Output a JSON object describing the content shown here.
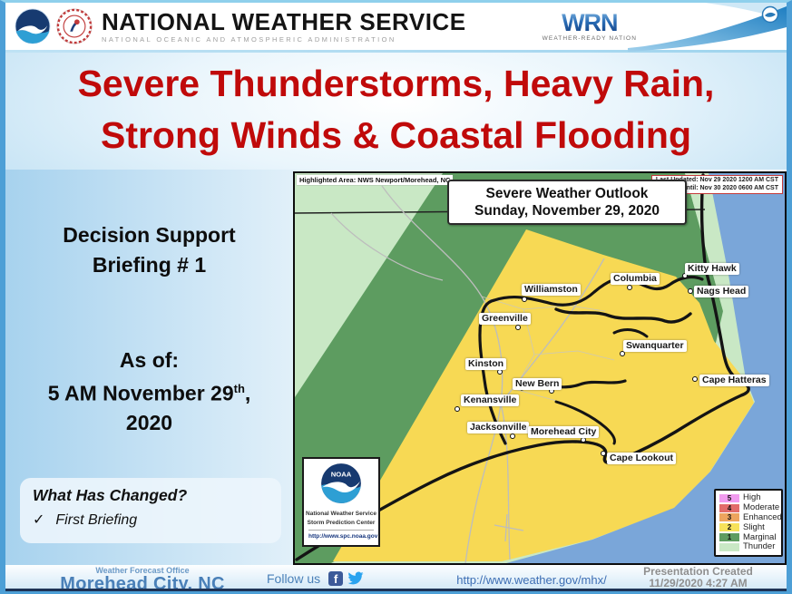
{
  "header": {
    "agency": "NATIONAL WEATHER SERVICE",
    "subagency": "NATIONAL OCEANIC AND ATMOSPHERIC ADMINISTRATION",
    "wrn_acronym": "WRN",
    "wrn_label": "WEATHER-READY NATION"
  },
  "title": {
    "line1": "Severe Thunderstorms, Heavy Rain,",
    "line2": "Strong Winds & Coastal Flooding"
  },
  "left_panel": {
    "briefing_line1": "Decision Support",
    "briefing_line2": "Briefing # 1",
    "asof_label": "As of:",
    "asof_date_main": "5 AM November 29",
    "asof_date_sup": "th",
    "asof_date_tail": ",",
    "asof_year": "2020",
    "changed_heading": "What Has Changed?",
    "changed_check": "✓",
    "changed_item": "First Briefing"
  },
  "map": {
    "highlighted_area": "Highlighted Area: NWS Newport/Morehead, NC",
    "outlook_title_line1": "Severe Weather Outlook",
    "outlook_title_line2": "Sunday, November 29, 2020",
    "last_updated": "Last Updated: Nov 29 2020 1200 AM CST",
    "valid_until": "Valid Until: Nov 30 2020 0600 AM CST",
    "colors": {
      "thunder": "#c9e8c5",
      "thunder_strip": "#c9e8c5",
      "marginal": "#5d9c60",
      "slight": "#f7d954",
      "ocean": "#7aa6d9"
    },
    "cities": [
      {
        "name": "Kitty Hawk",
        "label": [
          430,
          99
        ],
        "dot": [
          430,
          113
        ]
      },
      {
        "name": "Nags Head",
        "label": [
          440,
          124
        ],
        "dot": [
          436,
          130
        ]
      },
      {
        "name": "Columbia",
        "label": [
          348,
          110
        ],
        "dot": [
          369,
          126
        ]
      },
      {
        "name": "Williamston",
        "label": [
          250,
          122
        ],
        "dot": [
          253,
          139
        ]
      },
      {
        "name": "Greenville",
        "label": [
          203,
          154
        ],
        "dot": [
          246,
          170
        ]
      },
      {
        "name": "Swanquarter",
        "label": [
          362,
          184
        ],
        "dot": [
          361,
          199
        ]
      },
      {
        "name": "Kinston",
        "label": [
          188,
          204
        ],
        "dot": [
          226,
          219
        ]
      },
      {
        "name": "New Bern",
        "label": [
          240,
          226
        ],
        "dot": [
          283,
          240
        ]
      },
      {
        "name": "Cape Hatteras",
        "label": [
          446,
          222
        ],
        "dot": [
          441,
          227
        ]
      },
      {
        "name": "Kenansville",
        "label": [
          183,
          244
        ],
        "dot": [
          179,
          260
        ]
      },
      {
        "name": "Jacksonville",
        "label": [
          190,
          274
        ],
        "dot": [
          240,
          290
        ]
      },
      {
        "name": "Morehead City",
        "label": [
          257,
          279
        ],
        "dot": [
          318,
          294
        ]
      },
      {
        "name": "Cape Lookout",
        "label": [
          344,
          308
        ],
        "dot": [
          340,
          309
        ]
      }
    ],
    "noaa_box": {
      "acronym": "NOAA",
      "org_line1": "National Weather Service",
      "org_line2": "Storm Prediction Center",
      "url": "http://www.spc.noaa.gov"
    },
    "legend": [
      {
        "num": "5",
        "label": "High",
        "color": "#f19bef"
      },
      {
        "num": "4",
        "label": "Moderate",
        "color": "#e26b6a"
      },
      {
        "num": "3",
        "label": "Enhanced",
        "color": "#eda45e"
      },
      {
        "num": "2",
        "label": "Slight",
        "color": "#f7e25b"
      },
      {
        "num": "1",
        "label": "Marginal",
        "color": "#5d9c60"
      },
      {
        "num": "",
        "label": "Thunder",
        "color": "#c9e8c5"
      }
    ]
  },
  "footer": {
    "office_label": "Weather Forecast Office",
    "office_name": "Morehead City, NC",
    "follow_label": "Follow us",
    "facebook_glyph": "f",
    "url": "http://www.weather.gov/mhx/",
    "created_label": "Presentation Created",
    "created_value": "11/29/2020 4:27 AM"
  },
  "colors": {
    "title_red": "#c00a0a",
    "footer_blue": "#4a80b8",
    "border_blue": "#4d9fd6"
  }
}
